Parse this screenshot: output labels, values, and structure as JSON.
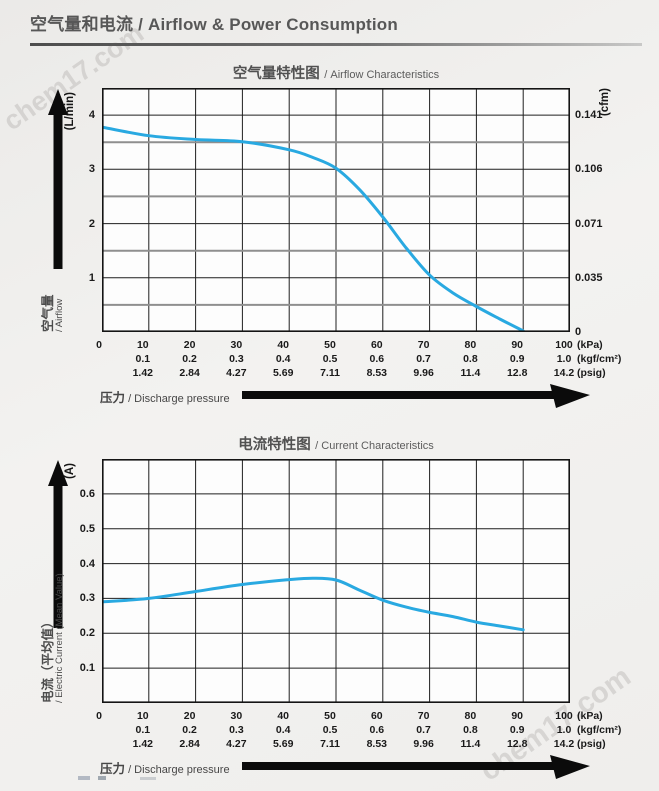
{
  "watermark": {
    "text": "chem17.com"
  },
  "header": {
    "title": "空气量和电流 / Airflow & Power Consumption"
  },
  "pressure_label": {
    "zh": "压力",
    "en": " / Discharge pressure"
  },
  "x_axis_rows": [
    {
      "values": [
        "0",
        "10",
        "20",
        "30",
        "40",
        "50",
        "60",
        "70",
        "80",
        "90",
        "100"
      ],
      "unit": "(kPa)",
      "first_tick": 0
    },
    {
      "values": [
        "0.1",
        "0.2",
        "0.3",
        "0.4",
        "0.5",
        "0.6",
        "0.7",
        "0.8",
        "0.9",
        "1.0"
      ],
      "unit": "(kgf/cm²)",
      "first_tick": 1
    },
    {
      "values": [
        "1.42",
        "2.84",
        "4.27",
        "5.69",
        "7.11",
        "8.53",
        "9.96",
        "11.4",
        "12.8",
        "14.2"
      ],
      "unit": "(psig)",
      "first_tick": 1
    }
  ],
  "chart_data": [
    {
      "type": "line",
      "title_zh": "空气量特性图",
      "title_en": " / Airflow Characteristics",
      "xlabel": "压力 / Discharge pressure",
      "ylabel": "空气量 / Airflow",
      "x_axis": {
        "min": 0,
        "max": 100,
        "grid_step": 10,
        "units": [
          "kPa",
          "kgf/cm²",
          "psig"
        ]
      },
      "y_axis": {
        "unit": "(L/min)",
        "min": 0,
        "max": 4.5,
        "grid_step": 0.5,
        "label_step": 1,
        "ticks": [
          {
            "v": 4,
            "label": "4"
          },
          {
            "v": 3,
            "label": "3"
          },
          {
            "v": 2,
            "label": "2"
          },
          {
            "v": 1,
            "label": "1"
          }
        ]
      },
      "y_axis_right": {
        "unit": "(cfm)",
        "ticks": [
          {
            "v": 4,
            "label": "0.141"
          },
          {
            "v": 3,
            "label": "0.106"
          },
          {
            "v": 2,
            "label": "0.071"
          },
          {
            "v": 1,
            "label": "0.035"
          },
          {
            "v": 0,
            "label": "0"
          }
        ]
      },
      "axis_name_zh": "空气量",
      "axis_name_en": "/ Airflow",
      "series": [
        {
          "name": "airflow",
          "x": [
            0,
            10,
            20,
            30,
            40,
            45,
            50,
            55,
            60,
            65,
            70,
            75,
            80,
            85,
            90
          ],
          "y": [
            3.78,
            3.62,
            3.55,
            3.51,
            3.36,
            3.22,
            3.02,
            2.63,
            2.12,
            1.55,
            1.05,
            0.72,
            0.47,
            0.24,
            0.02
          ]
        }
      ]
    },
    {
      "type": "line",
      "title_zh": "电流特性图",
      "title_en": " / Current Characteristics",
      "xlabel": "压力 / Discharge pressure",
      "ylabel": "电流（平均值） / Electric Current (Mean Value)",
      "x_axis": {
        "min": 0,
        "max": 100,
        "grid_step": 10,
        "units": [
          "kPa",
          "kgf/cm²",
          "psig"
        ]
      },
      "y_axis": {
        "unit": "(A)",
        "min": 0,
        "max": 0.7,
        "grid_step": 0.1,
        "label_step": 0.1,
        "ticks": [
          {
            "v": 0.6,
            "label": "0.6"
          },
          {
            "v": 0.5,
            "label": "0.5"
          },
          {
            "v": 0.4,
            "label": "0.4"
          },
          {
            "v": 0.3,
            "label": "0.3"
          },
          {
            "v": 0.2,
            "label": "0.2"
          },
          {
            "v": 0.1,
            "label": "0.1"
          }
        ]
      },
      "axis_name_zh": "电流（平均值）",
      "axis_name_en": "/ Electric Current (Mean Value)",
      "series": [
        {
          "name": "current",
          "x": [
            0,
            10,
            20,
            30,
            40,
            45,
            50,
            55,
            60,
            65,
            70,
            75,
            80,
            85,
            90
          ],
          "y": [
            0.29,
            0.3,
            0.32,
            0.34,
            0.354,
            0.358,
            0.353,
            0.324,
            0.295,
            0.275,
            0.26,
            0.248,
            0.232,
            0.221,
            0.21
          ]
        }
      ]
    }
  ],
  "colors": {
    "curve": "#29a9e1",
    "grid_major": "#1f1f1f",
    "grid_minor": "#8f8f8f",
    "plot_border": "#141414",
    "plot_bg": "#fdfdfd",
    "arrow": "#0b0b0b",
    "title_text": "#515151"
  }
}
